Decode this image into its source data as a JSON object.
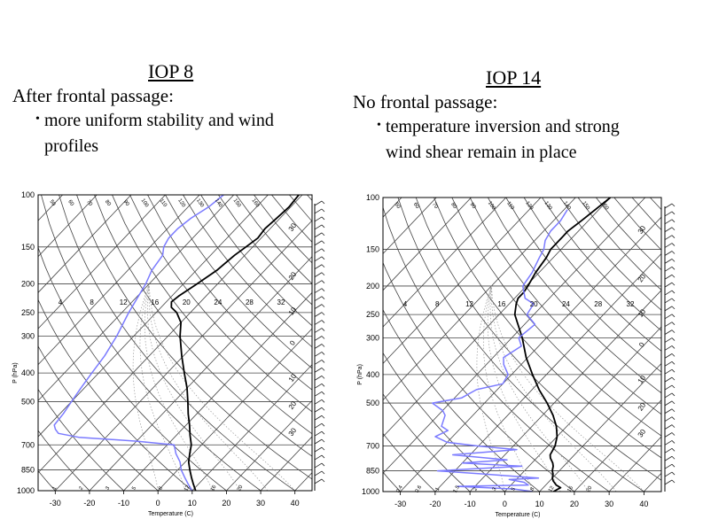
{
  "left": {
    "title": "IOP 8",
    "heading": "After frontal passage:",
    "bullet_marker": "•",
    "bullet_line1": "more uniform stability and wind",
    "bullet_line2": "profiles"
  },
  "right": {
    "title": "IOP 14",
    "heading": "No frontal passage:",
    "bullet_marker": "•",
    "bullet_line1": "temperature inversion and strong",
    "bullet_line2": "wind shear remain in place"
  },
  "chart_data": [
    {
      "type": "line",
      "subtype": "skew-T log-P sounding",
      "panel": "IOP 8",
      "xlabel": "Temperature (C)",
      "ylabel": "P (hPa)",
      "x_ticks": [
        -30,
        -20,
        -10,
        0,
        10,
        20,
        30,
        40
      ],
      "y_ticks": [
        100,
        150,
        200,
        250,
        300,
        400,
        500,
        700,
        850,
        1000
      ],
      "mixing_ratio_labels": [
        "4",
        "8",
        "12",
        "16",
        "20",
        "24",
        "28",
        "32"
      ],
      "dry_adiabat_labels": [
        "50",
        "60",
        "70",
        "80",
        "90",
        "100",
        "110",
        "120",
        "130",
        "140",
        "150",
        "160"
      ],
      "right_labels": [
        "30",
        "20",
        "10",
        "0",
        "10",
        "20",
        "30"
      ],
      "bottom_labels": [
        "1",
        "2",
        "3",
        "5",
        "8",
        "12",
        "16",
        "20"
      ],
      "series": [
        {
          "color": "#000000",
          "pressure": [
            1000,
            950,
            900,
            850,
            800,
            750,
            700,
            650,
            600,
            550,
            500,
            450,
            400,
            350,
            300,
            270,
            250,
            240,
            230,
            220,
            200,
            180,
            160,
            150,
            140,
            130,
            120,
            110,
            100
          ],
          "values": [
            11,
            8.5,
            6,
            3.5,
            1,
            -1,
            -3,
            -6,
            -9,
            -12.5,
            -16,
            -20,
            -25,
            -30.5,
            -36.5,
            -40,
            -44,
            -47,
            -48.5,
            -48,
            -46,
            -44,
            -43,
            -42,
            -41,
            -41.5,
            -41,
            -40.5,
            -41
          ]
        },
        {
          "color": "#7b7bff",
          "pressure": [
            1000,
            950,
            900,
            850,
            800,
            750,
            700,
            680,
            660,
            640,
            620,
            600,
            550,
            500,
            450,
            400,
            350,
            300,
            250,
            200,
            180,
            160,
            150,
            140,
            130,
            120,
            110,
            100
          ],
          "values": [
            10,
            7,
            4,
            1,
            -1.5,
            -5,
            -8,
            -20,
            -38,
            -45,
            -47,
            -48.5,
            -49,
            -50,
            -51,
            -52,
            -53,
            -55,
            -58,
            -61,
            -63,
            -64,
            -66,
            -67,
            -67,
            -66,
            -64,
            -63
          ]
        }
      ],
      "temp_profile_start_range": [
        -35,
        45
      ]
    },
    {
      "type": "line",
      "subtype": "skew-T log-P sounding",
      "panel": "IOP 14",
      "xlabel": "Temperature (C)",
      "ylabel": "P (hPa)",
      "x_ticks": [
        -30,
        -20,
        -10,
        0,
        10,
        20,
        30,
        40
      ],
      "y_ticks": [
        100,
        150,
        200,
        250,
        300,
        400,
        500,
        700,
        850,
        1000
      ],
      "mixing_ratio_labels": [
        "4",
        "8",
        "12",
        "16",
        "20",
        "24",
        "28",
        "32"
      ],
      "dry_adiabat_labels": [
        "50",
        "60",
        "70",
        "80",
        "90",
        "100",
        "110",
        "120",
        "130",
        "140",
        "150",
        "160"
      ],
      "right_labels": [
        "30",
        "20",
        "10",
        "0",
        "10",
        "20",
        "30"
      ],
      "bottom_labels": [
        "0.4",
        "0.6",
        "1",
        "1.5",
        "2",
        "3",
        "5",
        "8",
        "12",
        "16",
        "20"
      ],
      "series": [
        {
          "color": "#000000",
          "pressure": [
            1000,
            970,
            950,
            920,
            900,
            870,
            850,
            820,
            800,
            770,
            750,
            700,
            650,
            600,
            550,
            500,
            450,
            400,
            350,
            300,
            250,
            230,
            220,
            210,
            200,
            180,
            160,
            150,
            140,
            130,
            120,
            110,
            100
          ],
          "values": [
            14,
            15,
            13,
            11,
            10,
            9,
            8,
            7,
            6,
            4,
            3,
            2,
            0,
            -3,
            -7,
            -12,
            -18,
            -24,
            -30.5,
            -37,
            -45.5,
            -48,
            -49,
            -49,
            -49.5,
            -51,
            -52,
            -53,
            -53,
            -53,
            -52,
            -51,
            -50
          ]
        },
        {
          "color": "#7b7bff",
          "pressure": [
            1000,
            980,
            960,
            950,
            930,
            910,
            900,
            870,
            850,
            820,
            800,
            780,
            750,
            720,
            700,
            680,
            650,
            620,
            600,
            550,
            530,
            500,
            480,
            450,
            430,
            400,
            370,
            350,
            320,
            300,
            270,
            250,
            230,
            220,
            200,
            180,
            160,
            150,
            140,
            130,
            120,
            110
          ],
          "values": [
            8,
            2,
            -15,
            5,
            3,
            -2,
            6,
            -12,
            -25,
            -2,
            -20,
            -8,
            -25,
            -8,
            -20,
            -30,
            -35,
            -33,
            -36,
            -38,
            -40,
            -45,
            -38,
            -36,
            -30,
            -31,
            -35,
            -37,
            -35,
            -38,
            -37,
            -42,
            -43,
            -47,
            -51,
            -52,
            -54,
            -55,
            -57,
            -58,
            -58,
            -59
          ]
        }
      ]
    }
  ]
}
